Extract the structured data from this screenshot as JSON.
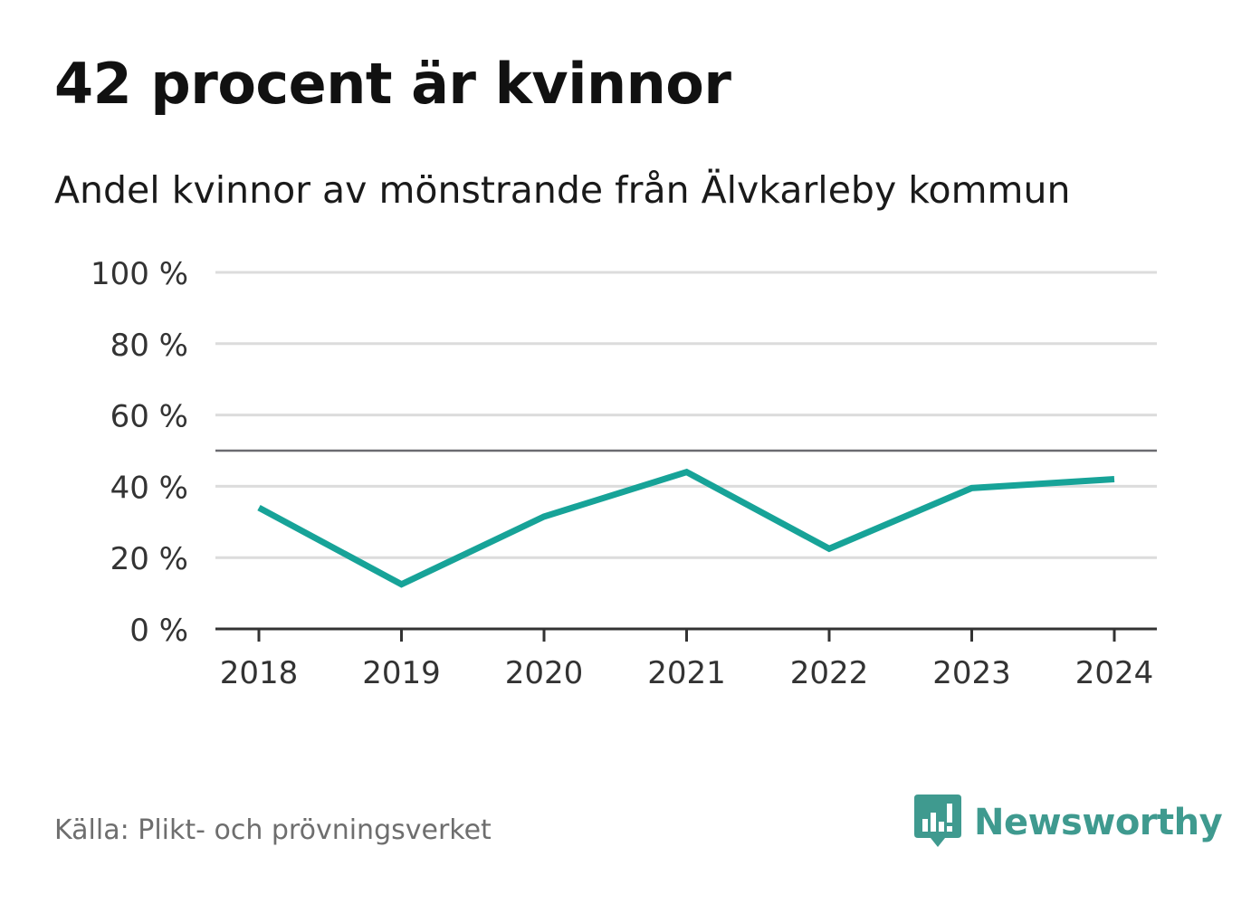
{
  "header": {
    "title": "42 procent är kvinnor",
    "subtitle": "Andel kvinnor av mönstrande från Älvkarleby kommun"
  },
  "footer": {
    "source": "Källa: Plikt- och prövningsverket",
    "brand": "Newsworthy",
    "brand_icon": "newsworthy-logo-icon"
  },
  "colors": {
    "line": "#17a398",
    "grid": "#dcdcdc",
    "reference_line": "#6b6b70",
    "axis": "#333333",
    "brand": "#3f9a8f"
  },
  "chart_data": {
    "type": "line",
    "title": "42 procent är kvinnor",
    "subtitle": "Andel kvinnor av mönstrande från Älvkarleby kommun",
    "xlabel": "",
    "ylabel": "",
    "x": [
      "2018",
      "2019",
      "2020",
      "2021",
      "2022",
      "2023",
      "2024"
    ],
    "series": [
      {
        "name": "Andel kvinnor",
        "values": [
          34,
          12.5,
          31.5,
          44,
          22.5,
          39.5,
          42
        ]
      }
    ],
    "ylim": [
      0,
      100
    ],
    "yticks": [
      0,
      20,
      40,
      60,
      80,
      100
    ],
    "ytick_labels": [
      "0 %",
      "20 %",
      "40 %",
      "60 %",
      "80 %",
      "100 %"
    ],
    "reference_line": 50,
    "grid": true,
    "legend": "none"
  }
}
